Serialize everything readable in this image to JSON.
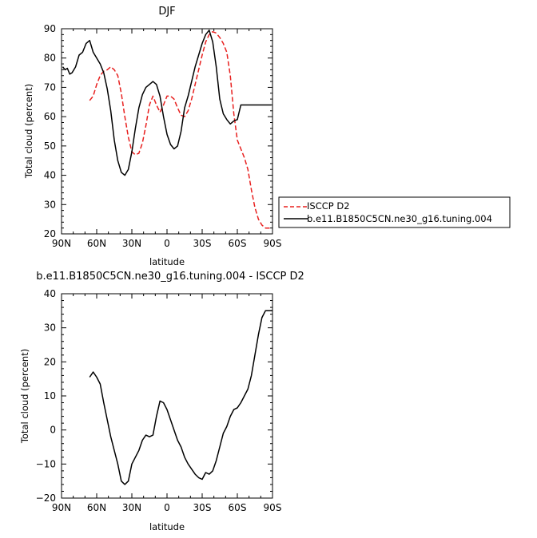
{
  "chart_data": [
    {
      "type": "line",
      "title": "DJF",
      "xlabel": "latitude",
      "ylabel": "Total cloud (percent)",
      "x_ticks": [
        "90N",
        "60N",
        "30N",
        "0",
        "30S",
        "60S",
        "90S"
      ],
      "xlim": [
        90,
        -90
      ],
      "ylim": [
        20,
        90
      ],
      "y_ticks": [
        20,
        30,
        40,
        50,
        60,
        70,
        80,
        90
      ],
      "legend_position": "right",
      "series": [
        {
          "name": "ISCCP D2",
          "color": "#e8201f",
          "style": "dashed",
          "x": [
            66,
            63,
            60,
            57,
            54,
            51,
            48,
            45,
            42,
            39,
            36,
            33,
            30,
            27,
            24,
            21,
            18,
            15,
            12,
            9,
            6,
            3,
            0,
            -3,
            -6,
            -9,
            -12,
            -15,
            -18,
            -21,
            -24,
            -27,
            -30,
            -33,
            -36,
            -39,
            -42,
            -45,
            -48,
            -51,
            -54,
            -57,
            -60,
            -63,
            -66,
            -69,
            -72,
            -75,
            -78,
            -81,
            -84,
            -87,
            -90
          ],
          "y": [
            65.5,
            67,
            71,
            74,
            75.5,
            76,
            77,
            76,
            74,
            68,
            60,
            53,
            48,
            47,
            47.5,
            51,
            57,
            64,
            67,
            64,
            61.5,
            64,
            67,
            67,
            66,
            63,
            60.5,
            60,
            62,
            66,
            71,
            76,
            81,
            85.5,
            88,
            89,
            88.5,
            87,
            85,
            82,
            74,
            61,
            52,
            49,
            46,
            42,
            35,
            29,
            25,
            23,
            22,
            22,
            22
          ],
          "x_visible_max": 66,
          "x_visible_min": -90
        },
        {
          "name": "b.e11.B1850C5CN.ne30_g16.tuning.004",
          "color": "#000000",
          "style": "solid",
          "x": [
            89,
            87,
            85,
            83,
            81,
            78,
            75,
            72,
            69,
            66,
            63,
            60,
            57,
            54,
            51,
            48,
            45,
            42,
            39,
            36,
            33,
            30,
            27,
            24,
            21,
            18,
            15,
            12,
            9,
            6,
            3,
            0,
            -3,
            -6,
            -9,
            -12,
            -15,
            -18,
            -21,
            -24,
            -27,
            -30,
            -33,
            -36,
            -39,
            -42,
            -45,
            -48,
            -51,
            -54,
            -57,
            -60,
            -63,
            -66,
            -69,
            -72,
            -75,
            -78,
            -81,
            -84,
            -87,
            -89
          ],
          "y": [
            77,
            76,
            76.5,
            74.5,
            75,
            77,
            81,
            82,
            85,
            86,
            82,
            80,
            78,
            75,
            69.5,
            62,
            52,
            45,
            41,
            40,
            42,
            48,
            56,
            63,
            67.5,
            70,
            71,
            72,
            71,
            67,
            60,
            54,
            50.5,
            49,
            50,
            55,
            63,
            67,
            72,
            77,
            81,
            85,
            88,
            89.5,
            85.5,
            77,
            66,
            61,
            59,
            57.5,
            58.5,
            59,
            64,
            64,
            64,
            64,
            64,
            64,
            64,
            64,
            64,
            64
          ],
          "x_visible_max": 89,
          "x_visible_min": -89
        }
      ]
    },
    {
      "type": "line",
      "title": "b.e11.B1850C5CN.ne30_g16.tuning.004 - ISCCP D2",
      "xlabel": "latitude",
      "ylabel": "Total cloud (percent)",
      "x_ticks": [
        "90N",
        "60N",
        "30N",
        "0",
        "30S",
        "60S",
        "90S"
      ],
      "xlim": [
        90,
        -90
      ],
      "ylim": [
        -20,
        40
      ],
      "y_ticks": [
        -20,
        -10,
        0,
        10,
        20,
        30,
        40
      ],
      "series": [
        {
          "color": "#000000",
          "style": "solid",
          "x": [
            66,
            63,
            60,
            57,
            54,
            51,
            48,
            45,
            42,
            39,
            36,
            33,
            30,
            27,
            24,
            21,
            18,
            15,
            12,
            9,
            6,
            3,
            0,
            -3,
            -6,
            -9,
            -12,
            -15,
            -18,
            -21,
            -24,
            -27,
            -30,
            -33,
            -36,
            -39,
            -42,
            -45,
            -48,
            -51,
            -54,
            -57,
            -60,
            -63,
            -66,
            -69,
            -72,
            -75,
            -78,
            -81,
            -84,
            -87,
            -90
          ],
          "y": [
            15.5,
            17,
            15.5,
            13.5,
            8,
            3,
            -2,
            -6,
            -10,
            -15,
            -16,
            -15,
            -10,
            -8,
            -6,
            -3,
            -1.5,
            -2,
            -1.5,
            4,
            8.5,
            8,
            6,
            3,
            0,
            -3,
            -5,
            -8,
            -10,
            -11.5,
            -13,
            -14,
            -14.5,
            -12.5,
            -13,
            -12,
            -9,
            -5,
            -1,
            1,
            4,
            6,
            6.5,
            8,
            10,
            12,
            16,
            22,
            28,
            33,
            35,
            35,
            35
          ]
        }
      ]
    }
  ]
}
